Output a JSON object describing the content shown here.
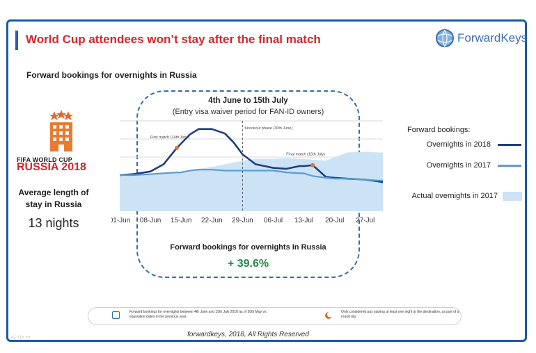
{
  "header": {
    "title": "World Cup attendees won’t stay after the final match",
    "logo_text": "ForwardKeys",
    "subtitle": "Forward bookings for overnights in Russia"
  },
  "period": {
    "title": "4th June to 15th July",
    "subtitle": "(Entry visa waiver period for FAN-ID owners)"
  },
  "left_panel": {
    "event_label": "FIFA WORLD CUP",
    "event_year": "RUSSIA 2018",
    "avg_stay_label": "Average length of stay in Russia",
    "avg_stay_value": "13 nights"
  },
  "legend": {
    "title": "Forward bookings:",
    "items": [
      {
        "label": "Overnights in 2018",
        "color": "#1f3f7a"
      },
      {
        "label": "Overnights in 2017",
        "color": "#5b9bd5"
      },
      {
        "label": "Actual overnights in 2017",
        "color": "#cce3f6"
      }
    ]
  },
  "summary": {
    "label": "Forward bookings for overnights in Russia",
    "value": "+ 39.6%"
  },
  "footnotes": {
    "note1": "Forward bookings for overnights between 4th June and 15th July 2018 as of 30th May vs. equivalent dates in the previous year.",
    "note2": "Only considered pax staying at least one night at the destination, as part of a round trip."
  },
  "footer": {
    "copyright": "forwardkeys, 2018, All Rights Reserved"
  },
  "chart_data": {
    "type": "line",
    "x": [
      "01-Jun",
      "04-Jun",
      "08-Jun",
      "11-Jun",
      "14-Jun",
      "15-Jun",
      "17-Jun",
      "19-Jun",
      "22-Jun",
      "25-Jun",
      "27-Jun",
      "29-Jun",
      "02-Jul",
      "06-Jul",
      "09-Jul",
      "12-Jul",
      "13-Jul",
      "15-Jul",
      "18-Jul",
      "20-Jul",
      "23-Jul",
      "27-Jul",
      "30-Jul",
      "31-Jul"
    ],
    "x_tick_labels": [
      "01-Jun",
      "08-Jun",
      "15-Jun",
      "22-Jun",
      "29-Jun",
      "06-Jul",
      "13-Jul",
      "20-Jul",
      "27-Jul"
    ],
    "ylim": [
      0,
      100
    ],
    "series": [
      {
        "name": "Overnights in 2018",
        "style": "line",
        "color": "#1f3f7a",
        "values": [
          40,
          41,
          44,
          52,
          70,
          75,
          85,
          91,
          91,
          86,
          76,
          63,
          52,
          48,
          47,
          50,
          50,
          51,
          38,
          37,
          36,
          35,
          33,
          32
        ]
      },
      {
        "name": "Overnights in 2017",
        "style": "line",
        "color": "#5b9bd5",
        "values": [
          40,
          40,
          41,
          42,
          43,
          43,
          45,
          46,
          46,
          45,
          45,
          45,
          45,
          45,
          43,
          42,
          42,
          39,
          37,
          36,
          36,
          35,
          34,
          34
        ]
      },
      {
        "name": "Actual overnights in 2017",
        "style": "area",
        "color": "#cce3f6",
        "values": [
          40,
          40,
          41,
          42,
          43,
          43,
          45,
          47,
          49,
          52,
          54,
          56,
          58,
          58,
          59,
          58,
          58,
          57,
          56,
          60,
          65,
          66,
          65,
          65
        ]
      }
    ],
    "annotations": [
      {
        "text": "First match (14th June)",
        "x": "14-Jun"
      },
      {
        "text": "Knockout phase (30th June)",
        "x": "29-Jun"
      },
      {
        "text": "Final match (15th July)",
        "x": "15-Jul"
      }
    ],
    "grid": true,
    "legend_position": "right"
  }
}
